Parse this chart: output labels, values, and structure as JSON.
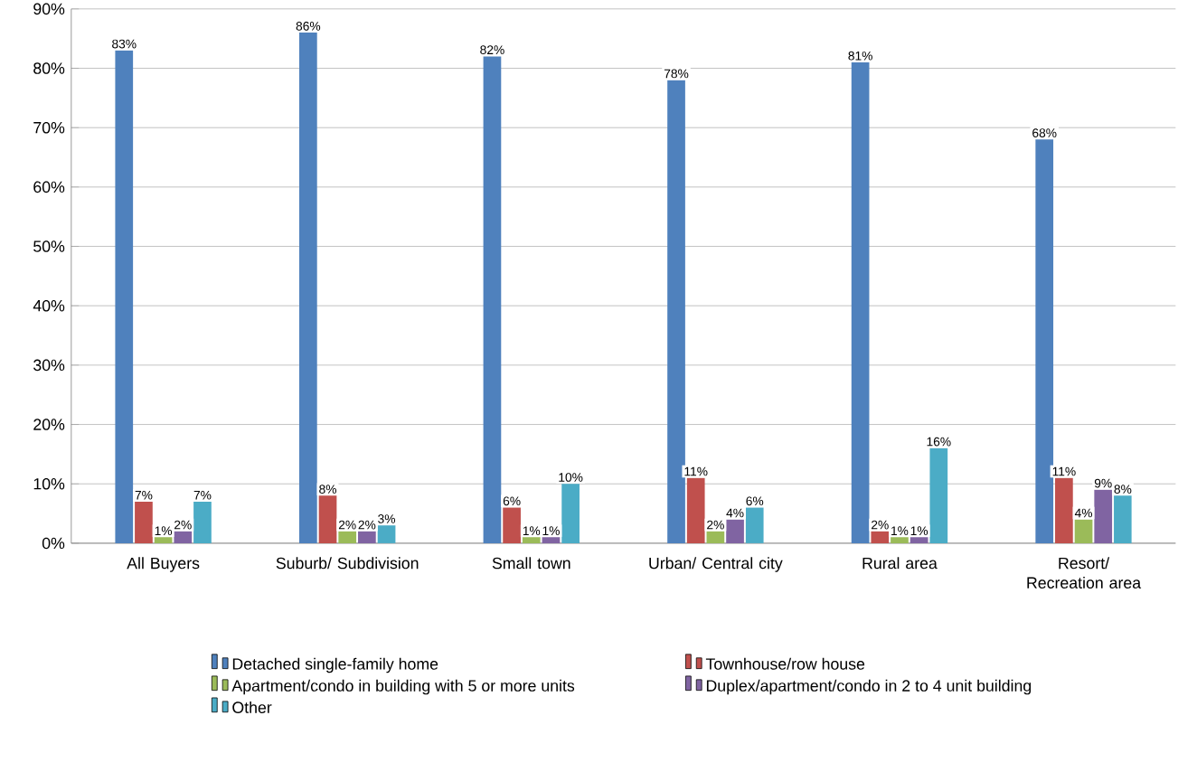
{
  "chart_data": {
    "type": "bar",
    "categories": [
      "All Buyers",
      "Suburb/ Subdivision",
      "Small town",
      "Urban/ Central city",
      "Rural area",
      "Resort/ Recreation area"
    ],
    "series": [
      {
        "name": "Detached single-family home",
        "color": "#4f81bd",
        "values": [
          83,
          86,
          82,
          78,
          81,
          68
        ],
        "value_labels": [
          "83%",
          "86%",
          "82%",
          "78%",
          "81%",
          "68%"
        ]
      },
      {
        "name": "Townhouse/row house",
        "color": "#c0504d",
        "values": [
          7,
          8,
          6,
          11,
          2,
          11
        ],
        "value_labels": [
          "7%",
          "8%",
          "6%",
          "11%",
          "2%",
          "11%"
        ]
      },
      {
        "name": "Apartment/condo in building with 5 or more units",
        "color": "#9bbb59",
        "values": [
          1,
          2,
          1,
          2,
          1,
          4
        ],
        "value_labels": [
          "1%",
          "2%",
          "1%",
          "2%",
          "1%",
          "4%"
        ]
      },
      {
        "name": "Duplex/apartment/condo in 2 to 4 unit building",
        "color": "#8064a2",
        "values": [
          2,
          2,
          1,
          4,
          1,
          9
        ],
        "value_labels": [
          "2%",
          "2%",
          "1%",
          "4%",
          "1%",
          "9%"
        ]
      },
      {
        "name": "Other",
        "color": "#4bacc6",
        "values": [
          7,
          3,
          10,
          6,
          16,
          8
        ],
        "value_labels": [
          "7%",
          "3%",
          "10%",
          "6%",
          "16%",
          "8%"
        ]
      }
    ],
    "ylim": [
      0,
      90
    ],
    "yticks": [
      {
        "value": 0,
        "label": "0%"
      },
      {
        "value": 10,
        "label": "10%"
      },
      {
        "value": 20,
        "label": "20%"
      },
      {
        "value": 30,
        "label": "30%"
      },
      {
        "value": 40,
        "label": "40%"
      },
      {
        "value": 50,
        "label": "50%"
      },
      {
        "value": 60,
        "label": "60%"
      },
      {
        "value": 70,
        "label": "70%"
      },
      {
        "value": 80,
        "label": "80%"
      },
      {
        "value": 90,
        "label": "90%"
      }
    ],
    "grid": "y",
    "legend": "bottom"
  }
}
